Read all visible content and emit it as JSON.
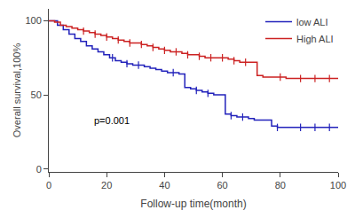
{
  "chart_data": {
    "type": "step",
    "xlabel": "Follow-up time(month)",
    "ylabel": "Overall survival,100%",
    "xlim": [
      0,
      100
    ],
    "ylim": [
      -2,
      108
    ],
    "xticks": [
      0,
      20,
      40,
      60,
      80,
      100
    ],
    "yticks": [
      0,
      50,
      100
    ],
    "grid": false,
    "legend": "upper right",
    "annotations": [
      {
        "text": "p=0.001",
        "x": 15,
        "y": 28
      }
    ],
    "series": [
      {
        "name": "low ALI",
        "color": "#2222bb",
        "x": [
          0,
          3,
          5,
          7,
          9,
          11,
          13,
          15,
          17,
          19,
          21,
          23,
          25,
          27,
          29,
          31,
          33,
          35,
          37,
          39,
          41,
          43,
          45,
          47,
          49,
          51,
          53,
          55,
          57,
          59,
          61,
          63,
          65,
          67,
          69,
          71,
          73,
          75,
          77,
          79,
          100
        ],
        "values": [
          100,
          97,
          94,
          91,
          88,
          86,
          83,
          81,
          79,
          77,
          75,
          73,
          72,
          71,
          70,
          70,
          69,
          68,
          67,
          66,
          65,
          65,
          64,
          55,
          54,
          53,
          52,
          51,
          50,
          50,
          37,
          36,
          35,
          35,
          34,
          33,
          33,
          33,
          29,
          28,
          28
        ],
        "censored": {
          "marker": "line-ns",
          "x": [
            22,
            27,
            31,
            43,
            51,
            55,
            63,
            67,
            79,
            87,
            92,
            97
          ],
          "values": [
            75,
            71,
            70,
            65,
            53,
            51,
            36,
            35,
            28,
            28,
            28,
            28
          ]
        }
      },
      {
        "name": "High ALI",
        "color": "#cc2222",
        "x": [
          0,
          2,
          4,
          6,
          8,
          10,
          12,
          14,
          16,
          18,
          20,
          22,
          24,
          26,
          28,
          30,
          32,
          34,
          36,
          38,
          40,
          42,
          44,
          46,
          48,
          50,
          52,
          54,
          56,
          58,
          60,
          62,
          64,
          66,
          68,
          70,
          72,
          74,
          76,
          78,
          80,
          82,
          100
        ],
        "values": [
          100,
          99,
          97,
          96,
          95,
          94,
          93,
          92,
          91,
          90,
          89,
          88,
          87,
          86,
          85,
          85,
          84,
          83,
          82,
          81,
          80,
          79,
          79,
          78,
          77,
          77,
          76,
          75,
          75,
          75,
          75,
          74,
          73,
          72,
          72,
          72,
          63,
          62,
          62,
          62,
          62,
          61,
          61
        ],
        "censored": {
          "marker": "line-ns",
          "x": [
            12,
            16,
            20,
            24,
            28,
            32,
            36,
            40,
            44,
            48,
            52,
            56,
            60,
            64,
            68,
            80,
            87,
            92,
            97
          ],
          "values": [
            93,
            91,
            89,
            87,
            85,
            84,
            82,
            80,
            79,
            77,
            76,
            75,
            75,
            73,
            72,
            62,
            61,
            61,
            61
          ]
        }
      }
    ]
  }
}
